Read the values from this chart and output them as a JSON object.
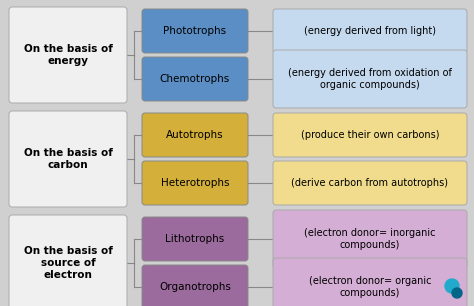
{
  "background_color": "#d0d0d0",
  "groups": [
    {
      "left_label": "On the basis of\nenergy",
      "left_box_color": "#f0f0f0",
      "left_text_color": "#000000",
      "items": [
        {
          "mid_label": "Phototrophs",
          "mid_color": "#5b8ec4",
          "mid_text_color": "#000000",
          "right_label": "(energy derived from light)",
          "right_color": "#c5d9ef",
          "right_text_color": "#000000"
        },
        {
          "mid_label": "Chemotrophs",
          "mid_color": "#5b8ec4",
          "mid_text_color": "#000000",
          "right_label": "(energy derived from oxidation of\norganic compounds)",
          "right_color": "#c5d9ef",
          "right_text_color": "#000000"
        }
      ]
    },
    {
      "left_label": "On the basis of\ncarbon",
      "left_box_color": "#f0f0f0",
      "left_text_color": "#000000",
      "items": [
        {
          "mid_label": "Autotrophs",
          "mid_color": "#d4b03a",
          "mid_text_color": "#000000",
          "right_label": "(produce their own carbons)",
          "right_color": "#f0dc8c",
          "right_text_color": "#000000"
        },
        {
          "mid_label": "Heterotrophs",
          "mid_color": "#d4b03a",
          "mid_text_color": "#000000",
          "right_label": "(derive carbon from autotrophs)",
          "right_color": "#f0dc8c",
          "right_text_color": "#000000"
        }
      ]
    },
    {
      "left_label": "On the basis of\nsource of\nelectron",
      "left_box_color": "#f0f0f0",
      "left_text_color": "#000000",
      "items": [
        {
          "mid_label": "Lithotrophs",
          "mid_color": "#9b6b9e",
          "mid_text_color": "#000000",
          "right_label": "(electron donor= inorganic\ncompounds)",
          "right_color": "#d4aed4",
          "right_text_color": "#000000"
        },
        {
          "mid_label": "Organotrophs",
          "mid_color": "#9b6b9e",
          "mid_text_color": "#000000",
          "right_label": "(electron donor= organic\ncompounds)",
          "right_color": "#d4aed4",
          "right_text_color": "#000000"
        }
      ]
    }
  ],
  "figsize": [
    4.74,
    3.06
  ],
  "dpi": 100
}
